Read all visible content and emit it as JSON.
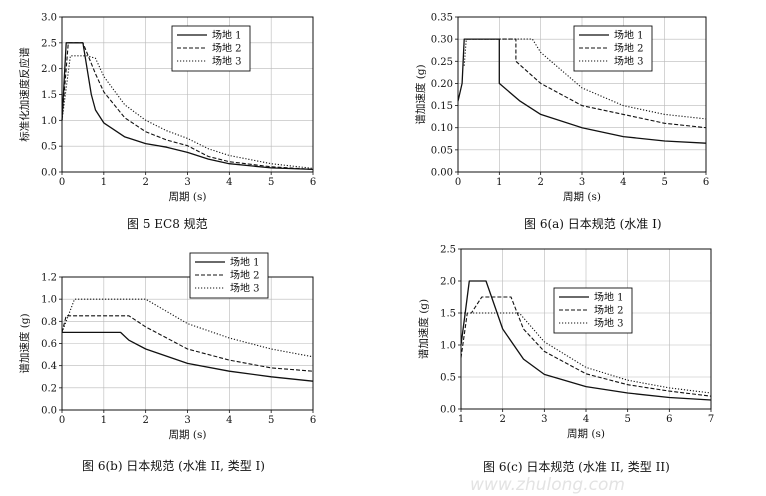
{
  "watermark": "www.zhulong.com",
  "chart_data": [
    {
      "type": "line",
      "caption": "图 5   EC8 规范",
      "xlabel": "周期 (s)",
      "ylabel": "标准化加速度反应谱",
      "xlim": [
        0,
        6
      ],
      "ylim": [
        0,
        3.0
      ],
      "xticks": [
        "0",
        "1",
        "2",
        "3",
        "4",
        "5",
        "6"
      ],
      "yticks": [
        "0.0",
        "0.5",
        "1.0",
        "1.5",
        "2.0",
        "2.5",
        "3.0"
      ],
      "grid": true,
      "legend_position": "top-right",
      "series": [
        {
          "name": "场地 1",
          "dash": "solid",
          "points": [
            [
              0,
              1
            ],
            [
              0.1,
              2.5
            ],
            [
              0.5,
              2.5
            ],
            [
              0.6,
              2.0
            ],
            [
              0.7,
              1.5
            ],
            [
              0.8,
              1.2
            ],
            [
              1.0,
              0.95
            ],
            [
              1.5,
              0.68
            ],
            [
              2.0,
              0.55
            ],
            [
              2.5,
              0.48
            ],
            [
              3.0,
              0.38
            ],
            [
              3.5,
              0.25
            ],
            [
              4.0,
              0.16
            ],
            [
              5.0,
              0.08
            ],
            [
              6.0,
              0.05
            ]
          ]
        },
        {
          "name": "场地 2",
          "dash": "dash",
          "points": [
            [
              0,
              1
            ],
            [
              0.15,
              2.5
            ],
            [
              0.5,
              2.5
            ],
            [
              0.8,
              1.9
            ],
            [
              1.0,
              1.55
            ],
            [
              1.5,
              1.05
            ],
            [
              2.0,
              0.78
            ],
            [
              2.5,
              0.62
            ],
            [
              3.0,
              0.51
            ],
            [
              3.5,
              0.3
            ],
            [
              4.0,
              0.2
            ],
            [
              5.0,
              0.1
            ],
            [
              6.0,
              0.05
            ]
          ]
        },
        {
          "name": "场地 3",
          "dash": "dot",
          "points": [
            [
              0,
              1
            ],
            [
              0.2,
              2.25
            ],
            [
              0.6,
              2.25
            ],
            [
              0.8,
              2.2
            ],
            [
              1.0,
              1.85
            ],
            [
              1.5,
              1.3
            ],
            [
              2.0,
              1.0
            ],
            [
              2.5,
              0.8
            ],
            [
              3.0,
              0.65
            ],
            [
              3.5,
              0.45
            ],
            [
              4.0,
              0.32
            ],
            [
              5.0,
              0.16
            ],
            [
              6.0,
              0.07
            ]
          ]
        }
      ]
    },
    {
      "type": "line",
      "caption": "图 6(a) 日本规范 (水准 I)",
      "xlabel": "周期 (s)",
      "ylabel": "谱加速度 (g)",
      "xlim": [
        0,
        6
      ],
      "ylim": [
        0,
        0.35
      ],
      "xticks": [
        "0",
        "1",
        "2",
        "3",
        "4",
        "5",
        "6"
      ],
      "yticks": [
        "0.00",
        "0.05",
        "0.10",
        "0.15",
        "0.20",
        "0.25",
        "0.30",
        "0.35"
      ],
      "grid": true,
      "legend_position": "top-right",
      "series": [
        {
          "name": "场地 1",
          "dash": "solid",
          "points": [
            [
              0,
              0.16
            ],
            [
              0.1,
              0.2
            ],
            [
              0.15,
              0.3
            ],
            [
              0.5,
              0.3
            ],
            [
              1.0,
              0.3
            ],
            [
              1.0,
              0.2
            ],
            [
              1.5,
              0.16
            ],
            [
              2.0,
              0.13
            ],
            [
              3.0,
              0.1
            ],
            [
              4.0,
              0.08
            ],
            [
              5.0,
              0.07
            ],
            [
              6.0,
              0.065
            ]
          ]
        },
        {
          "name": "场地 2",
          "dash": "dash",
          "points": [
            [
              0.2,
              0.3
            ],
            [
              1.4,
              0.3
            ],
            [
              1.4,
              0.25
            ],
            [
              2.0,
              0.2
            ],
            [
              3.0,
              0.15
            ],
            [
              4.0,
              0.13
            ],
            [
              5.0,
              0.11
            ],
            [
              6.0,
              0.1
            ]
          ]
        },
        {
          "name": "场地 3",
          "dash": "dot",
          "points": [
            [
              0.15,
              0.24
            ],
            [
              0.2,
              0.3
            ],
            [
              1.5,
              0.3
            ],
            [
              1.8,
              0.3
            ],
            [
              2.0,
              0.27
            ],
            [
              3.0,
              0.19
            ],
            [
              4.0,
              0.15
            ],
            [
              5.0,
              0.13
            ],
            [
              6.0,
              0.12
            ]
          ]
        }
      ]
    },
    {
      "type": "line",
      "caption": "图 6(b)   日本规范 (水准 II, 类型 I)",
      "xlabel": "周期 (s)",
      "ylabel": "谱加速度 (g)",
      "xlim": [
        0,
        6
      ],
      "ylim": [
        0,
        1.2
      ],
      "xticks": [
        "0",
        "1",
        "2",
        "3",
        "4",
        "5",
        "6"
      ],
      "yticks": [
        "0.0",
        "0.2",
        "0.4",
        "0.6",
        "0.8",
        "1.0",
        "1.2"
      ],
      "grid": true,
      "legend_position": "top-right",
      "series": [
        {
          "name": "场地 1",
          "dash": "solid",
          "points": [
            [
              0,
              0.7
            ],
            [
              1.4,
              0.7
            ],
            [
              1.6,
              0.63
            ],
            [
              2.0,
              0.55
            ],
            [
              3.0,
              0.42
            ],
            [
              4.0,
              0.35
            ],
            [
              5.0,
              0.3
            ],
            [
              6.0,
              0.26
            ]
          ]
        },
        {
          "name": "场地 2",
          "dash": "dash",
          "points": [
            [
              0,
              0.7
            ],
            [
              0.1,
              0.85
            ],
            [
              1.6,
              0.85
            ],
            [
              1.8,
              0.8
            ],
            [
              2.0,
              0.75
            ],
            [
              3.0,
              0.55
            ],
            [
              4.0,
              0.45
            ],
            [
              5.0,
              0.38
            ],
            [
              6.0,
              0.35
            ]
          ]
        },
        {
          "name": "场地 3",
          "dash": "dot",
          "points": [
            [
              0,
              0.7
            ],
            [
              0.3,
              1.0
            ],
            [
              2.0,
              1.0
            ],
            [
              3.0,
              0.78
            ],
            [
              4.0,
              0.65
            ],
            [
              5.0,
              0.55
            ],
            [
              6.0,
              0.48
            ]
          ]
        }
      ]
    },
    {
      "type": "line",
      "caption": "图 6(c)   日本规范 (水准 II, 类型 II)",
      "xlabel": "周期 (s)",
      "ylabel": "谱加速度 (g)",
      "xlim": [
        1,
        7
      ],
      "ylim": [
        0,
        2.5
      ],
      "xticks": [
        "1",
        "2",
        "3",
        "4",
        "5",
        "6",
        "7"
      ],
      "yticks": [
        "0.0",
        "0.5",
        "1.0",
        "1.5",
        "2.0",
        "2.5"
      ],
      "grid": true,
      "legend_position": "top-right",
      "series": [
        {
          "name": "场地 1",
          "dash": "solid",
          "points": [
            [
              1.0,
              1.0
            ],
            [
              1.1,
              1.5
            ],
            [
              1.2,
              2.0
            ],
            [
              1.6,
              2.0
            ],
            [
              2.0,
              1.25
            ],
            [
              2.5,
              0.78
            ],
            [
              3.0,
              0.54
            ],
            [
              4.0,
              0.35
            ],
            [
              5.0,
              0.25
            ],
            [
              6.0,
              0.18
            ],
            [
              7.0,
              0.14
            ]
          ]
        },
        {
          "name": "场地 2",
          "dash": "dash",
          "points": [
            [
              1.0,
              0.8
            ],
            [
              1.15,
              1.5
            ],
            [
              1.25,
              1.5
            ],
            [
              1.5,
              1.75
            ],
            [
              2.2,
              1.75
            ],
            [
              2.5,
              1.25
            ],
            [
              3.0,
              0.9
            ],
            [
              4.0,
              0.55
            ],
            [
              5.0,
              0.38
            ],
            [
              6.0,
              0.28
            ],
            [
              7.0,
              0.2
            ]
          ]
        },
        {
          "name": "场地 3",
          "dash": "dot",
          "points": [
            [
              1.0,
              1.5
            ],
            [
              2.4,
              1.5
            ],
            [
              3.0,
              1.05
            ],
            [
              4.0,
              0.65
            ],
            [
              5.0,
              0.45
            ],
            [
              6.0,
              0.33
            ],
            [
              7.0,
              0.25
            ]
          ]
        }
      ]
    }
  ]
}
